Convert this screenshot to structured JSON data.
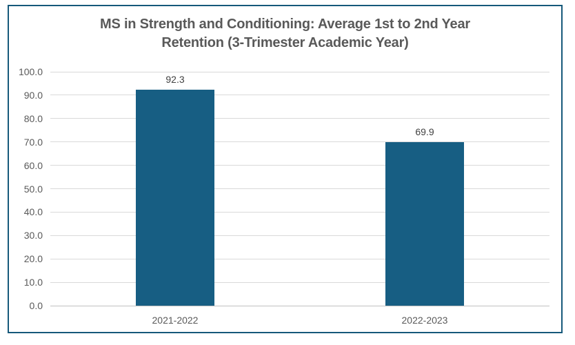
{
  "title": {
    "lines": [
      "MS in Strength and Conditioning: Average 1st to 2nd Year",
      "Retention (3-Trimester Academic Year)"
    ]
  },
  "chart_data": {
    "type": "bar",
    "title": "MS in Strength and Conditioning: Average 1st to 2nd Year Retention (3-Trimester Academic Year)",
    "categories": [
      "2021-2022",
      "2022-2023"
    ],
    "values": [
      92.3,
      69.9
    ],
    "value_labels": [
      "92.3",
      "69.9"
    ],
    "xlabel": "",
    "ylabel": "",
    "ylim": [
      0,
      100
    ],
    "ytick_step": 10,
    "ytick_labels": [
      "0.0",
      "10.0",
      "20.0",
      "30.0",
      "40.0",
      "50.0",
      "60.0",
      "70.0",
      "80.0",
      "90.0",
      "100.0"
    ],
    "grid": "horizontal",
    "legend": "none"
  },
  "colors": {
    "background": "#FFFFFF",
    "frame_border": "#15587A",
    "bar": "#175E83",
    "gridline": "#D9D9D9",
    "axis_line": "#C0C0C0",
    "title_text": "#595959",
    "tick_text": "#595959",
    "value_label_text": "#404040",
    "category_label_text": "#595959"
  }
}
